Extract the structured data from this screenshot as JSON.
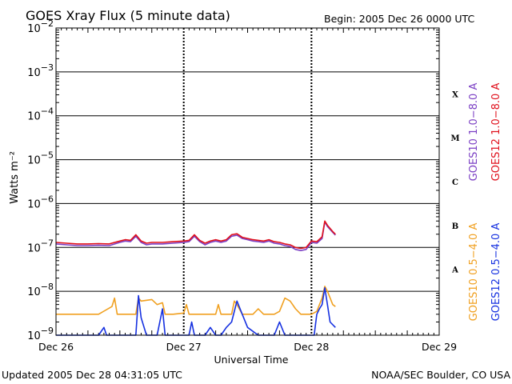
{
  "header": {
    "title": "GOES Xray Flux (5 minute data)",
    "begin_label": "Begin:  2005 Dec 26 0000 UTC"
  },
  "footer": {
    "updated": "Updated 2005 Dec 28 04:31:05 UTC",
    "source": "NOAA/SEC Boulder, CO USA"
  },
  "chart_data": {
    "type": "line",
    "title": "GOES Xray Flux (5 minute data)",
    "xlabel": "Universal Time",
    "ylabel": "Watts m⁻²",
    "y_scale": "log",
    "ylim": [
      1e-09,
      0.01
    ],
    "xlim": [
      0,
      72
    ],
    "x_units": "hours since 2005 Dec 26 0000 UTC",
    "x_ticks": [
      {
        "value": 0,
        "label": "Dec 26"
      },
      {
        "value": 24,
        "label": "Dec 27"
      },
      {
        "value": 48,
        "label": "Dec 28"
      },
      {
        "value": 72,
        "label": "Dec 29"
      }
    ],
    "y_ticks": [
      {
        "exp": -2,
        "label_base": "10",
        "label_exp": "−2"
      },
      {
        "exp": -3,
        "label_base": "10",
        "label_exp": "−3"
      },
      {
        "exp": -4,
        "label_base": "10",
        "label_exp": "−4"
      },
      {
        "exp": -5,
        "label_base": "10",
        "label_exp": "−5"
      },
      {
        "exp": -6,
        "label_base": "10",
        "label_exp": "−6"
      },
      {
        "exp": -7,
        "label_base": "10",
        "label_exp": "−7"
      },
      {
        "exp": -8,
        "label_base": "10",
        "label_exp": "−8"
      },
      {
        "exp": -9,
        "label_base": "10",
        "label_exp": "−9"
      }
    ],
    "flare_classes": [
      {
        "label": "X",
        "exp": -3.5
      },
      {
        "label": "M",
        "exp": -4.5
      },
      {
        "label": "C",
        "exp": -5.5
      },
      {
        "label": "B",
        "exp": -6.5
      },
      {
        "label": "A",
        "exp": -7.5
      }
    ],
    "legend_right_top": [
      {
        "name": "GOES10 1.0−8.0 A",
        "color": "#7b3fc4"
      },
      {
        "name": "GOES12 1.0−8.0 A",
        "color": "#e0101c"
      }
    ],
    "legend_right_bottom": [
      {
        "name": "GOES10 0.5−4.0 A",
        "color": "#f0a020"
      },
      {
        "name": "GOES12 0.5−4.0 A",
        "color": "#1530e0"
      }
    ],
    "series": [
      {
        "name": "GOES10 1.0−8.0 A",
        "color": "#7b3fc4",
        "points": [
          [
            0,
            1.2e-07
          ],
          [
            2,
            1.15e-07
          ],
          [
            4,
            1.1e-07
          ],
          [
            6,
            1.1e-07
          ],
          [
            8,
            1.12e-07
          ],
          [
            10,
            1.1e-07
          ],
          [
            12,
            1.3e-07
          ],
          [
            13,
            1.4e-07
          ],
          [
            14,
            1.35e-07
          ],
          [
            15,
            1.8e-07
          ],
          [
            16,
            1.3e-07
          ],
          [
            17,
            1.15e-07
          ],
          [
            18,
            1.2e-07
          ],
          [
            20,
            1.2e-07
          ],
          [
            22,
            1.25e-07
          ],
          [
            24,
            1.3e-07
          ],
          [
            25,
            1.35e-07
          ],
          [
            26,
            1.8e-07
          ],
          [
            27,
            1.35e-07
          ],
          [
            28,
            1.15e-07
          ],
          [
            29,
            1.3e-07
          ],
          [
            30,
            1.4e-07
          ],
          [
            31,
            1.3e-07
          ],
          [
            32,
            1.4e-07
          ],
          [
            33,
            1.8e-07
          ],
          [
            34,
            1.9e-07
          ],
          [
            35,
            1.6e-07
          ],
          [
            36,
            1.5e-07
          ],
          [
            37,
            1.4e-07
          ],
          [
            38,
            1.35e-07
          ],
          [
            39,
            1.3e-07
          ],
          [
            40,
            1.4e-07
          ],
          [
            41,
            1.25e-07
          ],
          [
            42,
            1.2e-07
          ],
          [
            43,
            1.1e-07
          ],
          [
            44,
            1.05e-07
          ],
          [
            45,
            9e-08
          ],
          [
            46,
            8.5e-08
          ],
          [
            47,
            9e-08
          ],
          [
            48,
            1.3e-07
          ],
          [
            49,
            1.25e-07
          ],
          [
            50,
            1.6e-07
          ],
          [
            50.5,
            3.8e-07
          ],
          [
            51,
            3e-07
          ],
          [
            52,
            2.2e-07
          ],
          [
            52.5,
            1.9e-07
          ]
        ]
      },
      {
        "name": "GOES12 1.0−8.0 A",
        "color": "#e0101c",
        "points": [
          [
            0,
            1.3e-07
          ],
          [
            2,
            1.25e-07
          ],
          [
            4,
            1.2e-07
          ],
          [
            6,
            1.2e-07
          ],
          [
            8,
            1.22e-07
          ],
          [
            10,
            1.2e-07
          ],
          [
            12,
            1.4e-07
          ],
          [
            13,
            1.5e-07
          ],
          [
            14,
            1.45e-07
          ],
          [
            15,
            1.95e-07
          ],
          [
            16,
            1.4e-07
          ],
          [
            17,
            1.25e-07
          ],
          [
            18,
            1.3e-07
          ],
          [
            20,
            1.3e-07
          ],
          [
            22,
            1.35e-07
          ],
          [
            24,
            1.4e-07
          ],
          [
            25,
            1.45e-07
          ],
          [
            26,
            1.95e-07
          ],
          [
            27,
            1.45e-07
          ],
          [
            28,
            1.25e-07
          ],
          [
            29,
            1.4e-07
          ],
          [
            30,
            1.5e-07
          ],
          [
            31,
            1.4e-07
          ],
          [
            32,
            1.5e-07
          ],
          [
            33,
            1.95e-07
          ],
          [
            34,
            2.05e-07
          ],
          [
            35,
            1.7e-07
          ],
          [
            36,
            1.6e-07
          ],
          [
            37,
            1.5e-07
          ],
          [
            38,
            1.45e-07
          ],
          [
            39,
            1.4e-07
          ],
          [
            40,
            1.5e-07
          ],
          [
            41,
            1.35e-07
          ],
          [
            42,
            1.3e-07
          ],
          [
            43,
            1.2e-07
          ],
          [
            44,
            1.15e-07
          ],
          [
            45,
            1e-07
          ],
          [
            46,
            9.5e-08
          ],
          [
            47,
            1e-07
          ],
          [
            48,
            1.4e-07
          ],
          [
            49,
            1.35e-07
          ],
          [
            50,
            1.75e-07
          ],
          [
            50.5,
            4e-07
          ],
          [
            51,
            3.2e-07
          ],
          [
            52,
            2.3e-07
          ],
          [
            52.5,
            2e-07
          ]
        ]
      },
      {
        "name": "GOES10 0.5−4.0 A",
        "color": "#f0a020",
        "points": [
          [
            0,
            3e-09
          ],
          [
            5,
            3e-09
          ],
          [
            8,
            3e-09
          ],
          [
            10.5,
            4.5e-09
          ],
          [
            11,
            7e-09
          ],
          [
            11.5,
            3e-09
          ],
          [
            13,
            3e-09
          ],
          [
            15,
            3e-09
          ],
          [
            15.5,
            7e-09
          ],
          [
            16,
            6e-09
          ],
          [
            18,
            6.5e-09
          ],
          [
            19,
            5e-09
          ],
          [
            20,
            5.5e-09
          ],
          [
            20.5,
            3e-09
          ],
          [
            22,
            3e-09
          ],
          [
            24,
            3.2e-09
          ],
          [
            24.5,
            5e-09
          ],
          [
            25,
            3e-09
          ],
          [
            28,
            3e-09
          ],
          [
            30,
            3e-09
          ],
          [
            30.5,
            5e-09
          ],
          [
            31,
            3e-09
          ],
          [
            33,
            3e-09
          ],
          [
            33.5,
            6e-09
          ],
          [
            34,
            5e-09
          ],
          [
            35,
            3e-09
          ],
          [
            37,
            3e-09
          ],
          [
            38,
            4e-09
          ],
          [
            39,
            3e-09
          ],
          [
            41,
            3e-09
          ],
          [
            42,
            3.5e-09
          ],
          [
            43,
            7e-09
          ],
          [
            44,
            6e-09
          ],
          [
            45,
            4e-09
          ],
          [
            46,
            3e-09
          ],
          [
            48,
            3e-09
          ],
          [
            49,
            3.5e-09
          ],
          [
            50,
            7e-09
          ],
          [
            50.5,
            1.3e-08
          ],
          [
            51,
            1e-08
          ],
          [
            52,
            5e-09
          ],
          [
            52.5,
            4.5e-09
          ]
        ]
      },
      {
        "name": "GOES12 0.5−4.0 A",
        "color": "#1530e0",
        "points": [
          [
            0,
            1e-09
          ],
          [
            8,
            1e-09
          ],
          [
            9,
            1.5e-09
          ],
          [
            9.5,
            1e-09
          ],
          [
            13,
            1e-09
          ],
          [
            15,
            1e-09
          ],
          [
            15.5,
            8e-09
          ],
          [
            16,
            2.5e-09
          ],
          [
            17,
            1e-09
          ],
          [
            19,
            1e-09
          ],
          [
            20,
            4e-09
          ],
          [
            20.5,
            1e-09
          ],
          [
            25,
            1e-09
          ],
          [
            25.5,
            2e-09
          ],
          [
            26,
            1e-09
          ],
          [
            28,
            1e-09
          ],
          [
            29,
            1.5e-09
          ],
          [
            30,
            1e-09
          ],
          [
            31,
            1e-09
          ],
          [
            32,
            1.5e-09
          ],
          [
            33,
            2e-09
          ],
          [
            34,
            6e-09
          ],
          [
            35,
            3e-09
          ],
          [
            36,
            1.5e-09
          ],
          [
            38,
            1e-09
          ],
          [
            41,
            1e-09
          ],
          [
            42,
            2e-09
          ],
          [
            43,
            1e-09
          ],
          [
            47,
            1e-09
          ],
          [
            48.5,
            1e-09
          ],
          [
            49,
            3e-09
          ],
          [
            49.5,
            4e-09
          ],
          [
            50,
            5e-09
          ],
          [
            50.5,
            1.2e-08
          ],
          [
            51,
            5e-09
          ],
          [
            51.5,
            2e-09
          ],
          [
            52.5,
            1.5e-09
          ]
        ]
      }
    ]
  }
}
